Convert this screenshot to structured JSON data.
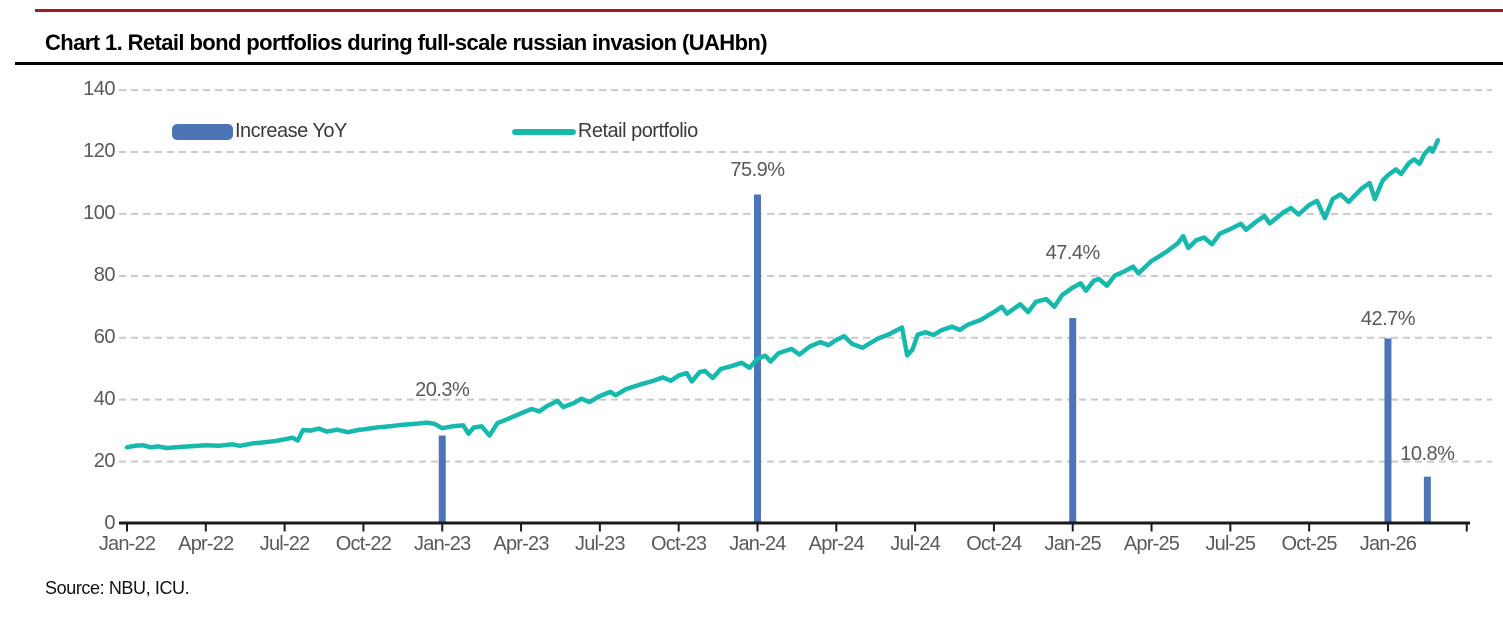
{
  "header": {
    "title": "Chart 1. Retail bond portfolios during full-scale russian invasion (UAHbn)"
  },
  "footer": {
    "source": "Source: NBU, ICU."
  },
  "colors": {
    "accent_rule": "#9e1b1e",
    "title_rule": "#000000",
    "bar": "#4e74b8",
    "line": "#17b9ac",
    "axis_text": "#595959",
    "grid": "#c9c9c9",
    "axis": "#1a1a1a"
  },
  "legend": [
    {
      "label": "Increase YoY",
      "swatch": "bar"
    },
    {
      "label": "Retail portfolio",
      "swatch": "line"
    }
  ],
  "chart_data": {
    "type": "line+bar",
    "title": "Chart 1. Retail bond portfolios during full-scale russian invasion (UAHbn)",
    "ylabel": "UAHbn",
    "ylim": [
      0,
      140
    ],
    "yticks": [
      0,
      20,
      40,
      60,
      80,
      100,
      120,
      140
    ],
    "grid": "horizontal dashed",
    "legend_position": "top-left inside plot",
    "x_unit": "months since Jan-2022, quarterly ticks",
    "xtick_labels": [
      "Jan-22",
      "Apr-22",
      "Jul-22",
      "Oct-22",
      "Jan-23",
      "Apr-23",
      "Jul-23",
      "Oct-23",
      "Jan-24",
      "Apr-24",
      "Jul-24",
      "Oct-24",
      "Jan-25",
      "Apr-25",
      "Jul-25",
      "Oct-25",
      "Jan-26"
    ],
    "xtick_month_step": 3,
    "series": [
      {
        "name": "Retail portfolio",
        "type": "line",
        "color": "#17b9ac",
        "points": [
          [
            0,
            24.6
          ],
          [
            0.3,
            25.1
          ],
          [
            0.6,
            25.3
          ],
          [
            0.9,
            24.6
          ],
          [
            1.2,
            24.9
          ],
          [
            1.5,
            24.4
          ],
          [
            2,
            24.7
          ],
          [
            2.5,
            25.0
          ],
          [
            3,
            25.3
          ],
          [
            3.5,
            25.1
          ],
          [
            4,
            25.6
          ],
          [
            4.3,
            25.1
          ],
          [
            4.8,
            25.9
          ],
          [
            5.2,
            26.2
          ],
          [
            5.6,
            26.6
          ],
          [
            6,
            27.2
          ],
          [
            6.3,
            27.7
          ],
          [
            6.5,
            26.8
          ],
          [
            6.7,
            30.2
          ],
          [
            7,
            30.0
          ],
          [
            7.3,
            30.7
          ],
          [
            7.6,
            29.7
          ],
          [
            8,
            30.3
          ],
          [
            8.4,
            29.5
          ],
          [
            8.8,
            30.2
          ],
          [
            9,
            30.4
          ],
          [
            9.5,
            31.0
          ],
          [
            10,
            31.4
          ],
          [
            10.5,
            31.9
          ],
          [
            11,
            32.2
          ],
          [
            11.4,
            32.6
          ],
          [
            11.7,
            32.2
          ],
          [
            12,
            30.8
          ],
          [
            12.4,
            31.4
          ],
          [
            12.8,
            31.7
          ],
          [
            13,
            29.0
          ],
          [
            13.2,
            31.0
          ],
          [
            13.5,
            31.4
          ],
          [
            13.8,
            28.4
          ],
          [
            14.1,
            32.4
          ],
          [
            14.5,
            33.8
          ],
          [
            15,
            35.6
          ],
          [
            15.4,
            37.0
          ],
          [
            15.7,
            36.2
          ],
          [
            16,
            38.0
          ],
          [
            16.4,
            39.6
          ],
          [
            16.6,
            37.6
          ],
          [
            17,
            38.9
          ],
          [
            17.3,
            40.3
          ],
          [
            17.6,
            39.2
          ],
          [
            18,
            41.2
          ],
          [
            18.4,
            42.5
          ],
          [
            18.6,
            41.4
          ],
          [
            19,
            43.4
          ],
          [
            19.5,
            44.8
          ],
          [
            20,
            46.0
          ],
          [
            20.4,
            47.2
          ],
          [
            20.7,
            46.1
          ],
          [
            21,
            47.8
          ],
          [
            21.3,
            48.6
          ],
          [
            21.5,
            45.9
          ],
          [
            21.8,
            48.9
          ],
          [
            22,
            49.3
          ],
          [
            22.3,
            47.0
          ],
          [
            22.6,
            49.9
          ],
          [
            23,
            50.8
          ],
          [
            23.4,
            51.9
          ],
          [
            23.7,
            50.3
          ],
          [
            24,
            53.3
          ],
          [
            24.3,
            54.2
          ],
          [
            24.5,
            52.3
          ],
          [
            24.8,
            55.0
          ],
          [
            25,
            55.6
          ],
          [
            25.3,
            56.4
          ],
          [
            25.6,
            54.6
          ],
          [
            26,
            57.2
          ],
          [
            26.4,
            58.6
          ],
          [
            26.7,
            57.6
          ],
          [
            27,
            59.3
          ],
          [
            27.3,
            60.5
          ],
          [
            27.6,
            58.0
          ],
          [
            28,
            56.8
          ],
          [
            28.3,
            58.3
          ],
          [
            28.6,
            59.8
          ],
          [
            29,
            61.1
          ],
          [
            29.3,
            62.4
          ],
          [
            29.5,
            63.3
          ],
          [
            29.7,
            54.3
          ],
          [
            29.9,
            56.2
          ],
          [
            30.1,
            61.0
          ],
          [
            30.4,
            61.8
          ],
          [
            30.7,
            60.9
          ],
          [
            31,
            62.4
          ],
          [
            31.4,
            63.6
          ],
          [
            31.7,
            62.5
          ],
          [
            32,
            64.2
          ],
          [
            32.5,
            65.8
          ],
          [
            33,
            68.3
          ],
          [
            33.3,
            70.0
          ],
          [
            33.5,
            67.8
          ],
          [
            34,
            70.8
          ],
          [
            34.3,
            68.3
          ],
          [
            34.6,
            71.6
          ],
          [
            35,
            72.5
          ],
          [
            35.3,
            70.0
          ],
          [
            35.6,
            73.8
          ],
          [
            36,
            76.2
          ],
          [
            36.3,
            77.6
          ],
          [
            36.5,
            75.2
          ],
          [
            36.8,
            78.4
          ],
          [
            37,
            79.0
          ],
          [
            37.3,
            76.8
          ],
          [
            37.6,
            80.1
          ],
          [
            38,
            81.6
          ],
          [
            38.3,
            83.0
          ],
          [
            38.5,
            80.8
          ],
          [
            39,
            84.8
          ],
          [
            39.3,
            86.3
          ],
          [
            39.6,
            88.0
          ],
          [
            40,
            90.5
          ],
          [
            40.2,
            92.8
          ],
          [
            40.4,
            89.0
          ],
          [
            40.7,
            91.5
          ],
          [
            41,
            92.4
          ],
          [
            41.3,
            90.2
          ],
          [
            41.6,
            93.6
          ],
          [
            42,
            95.1
          ],
          [
            42.4,
            96.8
          ],
          [
            42.6,
            94.9
          ],
          [
            43,
            97.6
          ],
          [
            43.3,
            99.3
          ],
          [
            43.5,
            96.9
          ],
          [
            44,
            100.4
          ],
          [
            44.3,
            101.9
          ],
          [
            44.6,
            99.8
          ],
          [
            45,
            102.9
          ],
          [
            45.3,
            104.2
          ],
          [
            45.6,
            98.7
          ],
          [
            45.9,
            104.9
          ],
          [
            46.2,
            106.3
          ],
          [
            46.5,
            103.9
          ],
          [
            47,
            108.2
          ],
          [
            47.3,
            110.0
          ],
          [
            47.5,
            104.8
          ],
          [
            47.8,
            110.8
          ],
          [
            48,
            112.5
          ],
          [
            48.3,
            114.4
          ],
          [
            48.5,
            112.9
          ],
          [
            48.8,
            116.5
          ],
          [
            49,
            117.6
          ],
          [
            49.2,
            116.2
          ],
          [
            49.4,
            119.5
          ],
          [
            49.6,
            121.3
          ],
          [
            49.7,
            120.1
          ],
          [
            49.9,
            123.8
          ]
        ]
      },
      {
        "name": "Increase YoY",
        "type": "bar",
        "color": "#4e74b8",
        "value_axis": "percent; 100% aligns with 140 on the UAHbn axis",
        "bars": [
          {
            "month": 12,
            "date": "Jan-23",
            "pct": 20.3,
            "label": "20.3%",
            "label_y_value": 44
          },
          {
            "month": 24,
            "date": "Jan-24",
            "pct": 75.9,
            "label": "75.9%",
            "label_y_value": 115
          },
          {
            "month": 36,
            "date": "Jan-25",
            "pct": 47.4,
            "label": "47.4%",
            "label_y_value": 88.5
          },
          {
            "month": 48,
            "date": "Jan-26",
            "pct": 42.7,
            "label": "42.7%",
            "label_y_value": 67
          },
          {
            "month": 49.5,
            "date": "Feb-26",
            "pct": 10.8,
            "label": "10.8%",
            "label_y_value": 23.5
          }
        ]
      }
    ]
  }
}
